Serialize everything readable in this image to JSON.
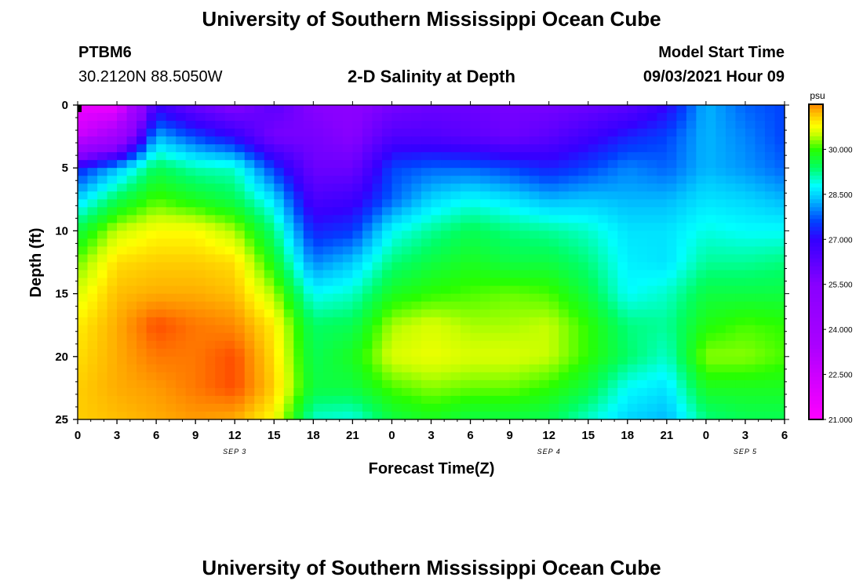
{
  "page": {
    "title_top": "University of Southern Mississippi Ocean Cube",
    "title_bottom": "University of Southern Mississippi Ocean Cube",
    "station_id": "PTBM6",
    "station_coords": "30.2120N  88.5050W",
    "product": "2-D Salinity at Depth",
    "model_start_label": "Model Start Time",
    "model_start_value": "09/03/2021 Hour 09"
  },
  "chart_data": {
    "type": "heatmap",
    "title": "2-D Salinity at Depth",
    "xlabel": "Forecast Time(Z)",
    "ylabel": "Depth (ft)",
    "x_ticks": [
      "0",
      "3",
      "6",
      "9",
      "12",
      "15",
      "18",
      "21",
      "0",
      "3",
      "6",
      "9",
      "12",
      "15",
      "18",
      "21",
      "0",
      "3",
      "6"
    ],
    "x_range_hours": [
      0,
      54
    ],
    "y_ticks": [
      "0",
      "5",
      "10",
      "15",
      "20",
      "25"
    ],
    "y_range": [
      0,
      25
    ],
    "date_labels": [
      {
        "text": "SEP 3",
        "hour": 12
      },
      {
        "text": "SEP 4",
        "hour": 36
      },
      {
        "text": "SEP 5",
        "hour": 51
      }
    ],
    "colorbar": {
      "unit": "psu",
      "min": 21.0,
      "max": 31.5,
      "ticks": [
        "21.000",
        "22.500",
        "24.000",
        "25.500",
        "27.000",
        "28.500",
        "30.000"
      ],
      "tick_values": [
        21.0,
        22.5,
        24.0,
        25.5,
        27.0,
        28.5,
        30.0
      ]
    },
    "depth_levels": [
      0,
      2.5,
      5,
      7.5,
      10,
      12.5,
      15,
      17.5,
      20,
      22.5,
      25
    ],
    "time_hours": [
      0,
      3,
      6,
      9,
      12,
      15,
      18,
      21,
      24,
      27,
      30,
      33,
      36,
      39,
      42,
      45,
      48,
      51,
      54
    ],
    "salinity_psu": [
      [
        21.5,
        21.5,
        26.8,
        26.0,
        25.5,
        26.3,
        25.5,
        25.3,
        25.8,
        26.0,
        26.0,
        25.8,
        25.8,
        26.0,
        26.3,
        27.0,
        28.3,
        27.8,
        27.6
      ],
      [
        22.5,
        24.0,
        28.3,
        27.6,
        27.0,
        25.8,
        25.8,
        25.5,
        26.5,
        26.5,
        26.3,
        26.0,
        26.3,
        26.8,
        27.3,
        27.6,
        28.3,
        28.0,
        27.6
      ],
      [
        27.3,
        28.3,
        29.5,
        29.1,
        29.0,
        27.5,
        26.0,
        26.0,
        27.6,
        27.8,
        27.8,
        27.6,
        27.3,
        27.6,
        28.0,
        27.8,
        28.3,
        28.1,
        27.8
      ],
      [
        28.5,
        29.5,
        30.1,
        29.8,
        29.5,
        28.6,
        26.6,
        26.8,
        27.8,
        28.5,
        28.8,
        28.6,
        28.3,
        28.4,
        28.3,
        28.3,
        28.6,
        28.5,
        28.3
      ],
      [
        29.6,
        30.5,
        30.8,
        30.8,
        30.4,
        29.3,
        27.3,
        27.5,
        28.8,
        29.2,
        29.5,
        29.3,
        29.2,
        29.0,
        28.6,
        28.6,
        28.9,
        28.8,
        28.8
      ],
      [
        30.2,
        31.0,
        31.1,
        31.1,
        31.0,
        29.8,
        28.0,
        28.4,
        29.3,
        29.6,
        29.8,
        29.6,
        29.6,
        29.3,
        28.7,
        28.6,
        29.2,
        29.2,
        29.3
      ],
      [
        30.6,
        31.2,
        31.3,
        31.3,
        31.2,
        30.4,
        28.8,
        29.0,
        29.8,
        30.0,
        30.1,
        30.2,
        30.1,
        29.6,
        28.8,
        29.0,
        29.6,
        29.6,
        29.6
      ],
      [
        30.9,
        31.3,
        31.8,
        31.6,
        31.5,
        30.9,
        29.4,
        29.5,
        30.4,
        30.6,
        30.4,
        30.4,
        30.5,
        30.0,
        29.3,
        29.2,
        29.9,
        30.1,
        30.0
      ],
      [
        31.0,
        31.3,
        31.6,
        31.6,
        31.8,
        31.0,
        29.5,
        29.8,
        30.6,
        30.7,
        30.6,
        30.6,
        30.5,
        30.0,
        29.4,
        29.0,
        30.3,
        30.3,
        30.1
      ],
      [
        31.1,
        31.3,
        31.4,
        31.6,
        31.8,
        31.1,
        29.6,
        29.6,
        30.1,
        30.3,
        30.2,
        30.2,
        30.0,
        29.6,
        28.8,
        28.6,
        29.8,
        29.8,
        29.8
      ],
      [
        31.1,
        31.2,
        31.3,
        31.4,
        31.3,
        30.8,
        29.0,
        28.9,
        29.6,
        29.8,
        29.6,
        29.6,
        29.5,
        29.0,
        28.5,
        28.3,
        29.3,
        29.5,
        29.5
      ]
    ]
  }
}
